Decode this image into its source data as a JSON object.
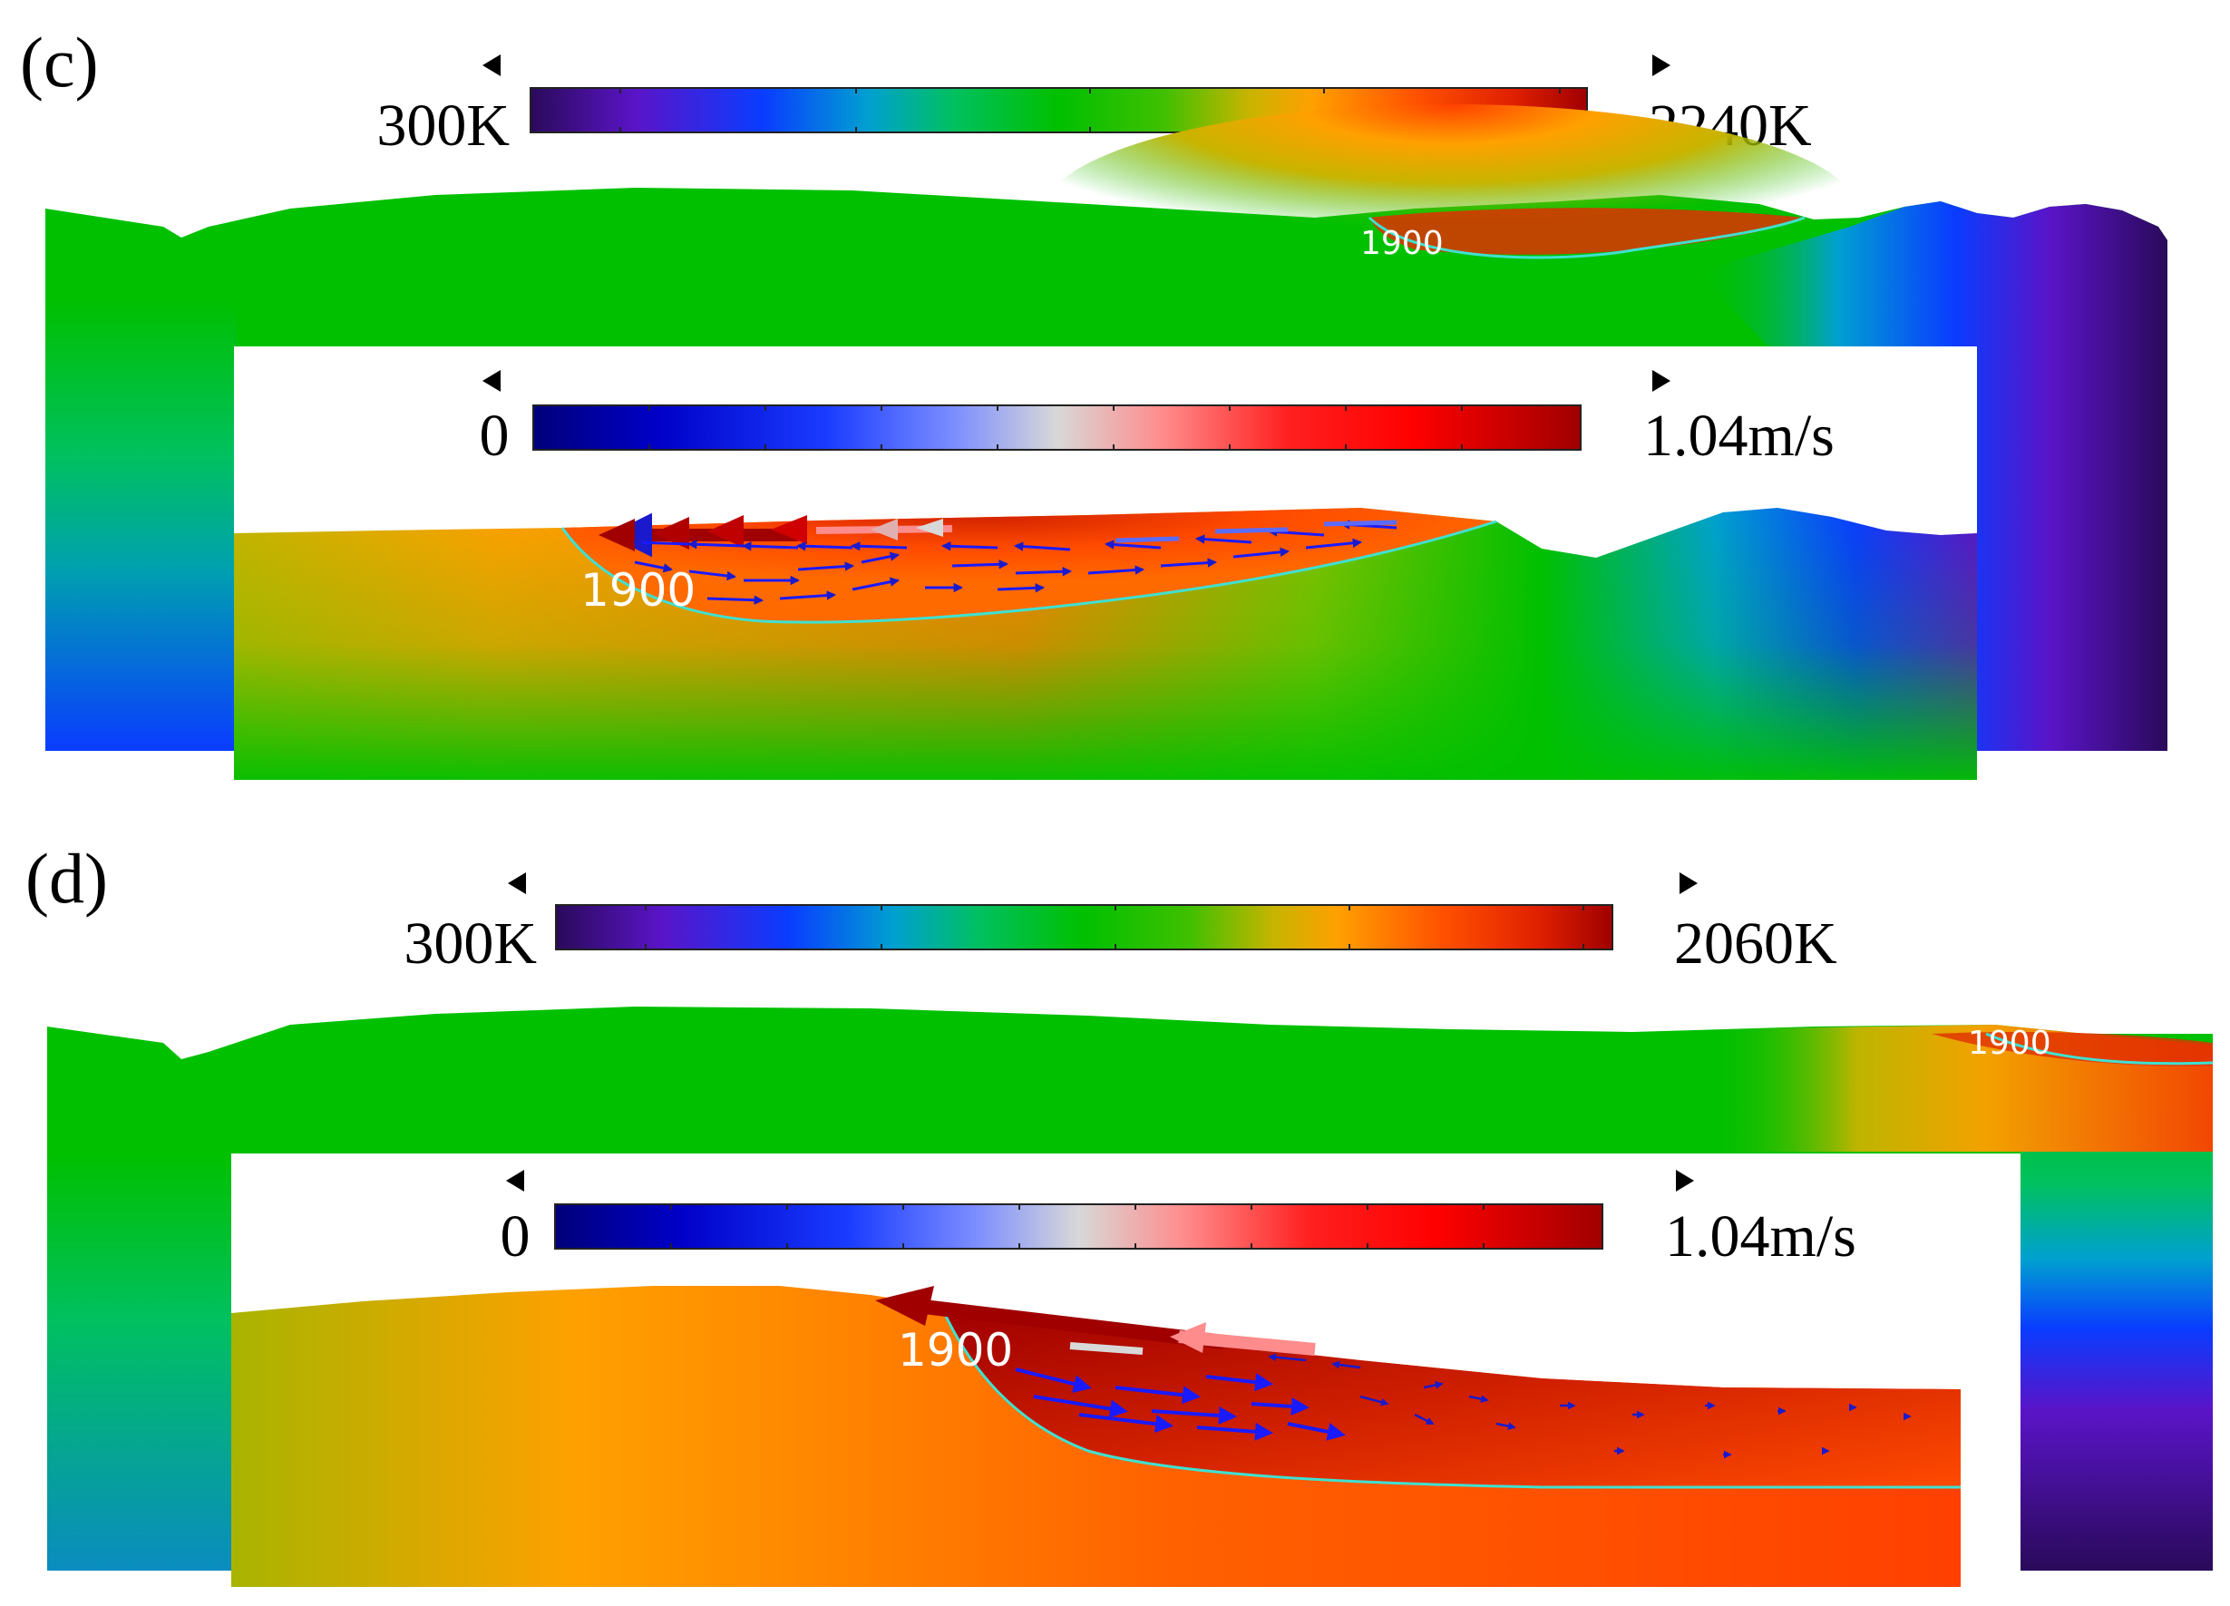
{
  "panels": [
    {
      "id": "c",
      "label": "(c)",
      "temperature_scale": {
        "min_label": "300K",
        "max_label": "2240K"
      },
      "velocity_scale": {
        "min_label": "0",
        "max_label": "1.04m/s"
      },
      "isotherm_labels": {
        "overview": "1900",
        "zoom": "1900"
      }
    },
    {
      "id": "d",
      "label": "(d)",
      "temperature_scale": {
        "min_label": "300K",
        "max_label": "2060K"
      },
      "velocity_scale": {
        "min_label": "0",
        "max_label": "1.04m/s"
      },
      "isotherm_labels": {
        "overview": "1900",
        "zoom": "1900"
      }
    }
  ],
  "colormaps": {
    "temperature": [
      "#2a0a5a",
      "#5a14c8",
      "#0a3cff",
      "#00a0d0",
      "#00c060",
      "#00c000",
      "#40c000",
      "#c8b400",
      "#ffa000",
      "#ff5000",
      "#e02000",
      "#a00000"
    ],
    "velocity": [
      "#00007a",
      "#0000c8",
      "#1a3cff",
      "#7a8cff",
      "#d8d8d8",
      "#ff8c8c",
      "#ff2020",
      "#ff0000",
      "#a00000"
    ]
  },
  "isotherm_color": "#40e0d0"
}
